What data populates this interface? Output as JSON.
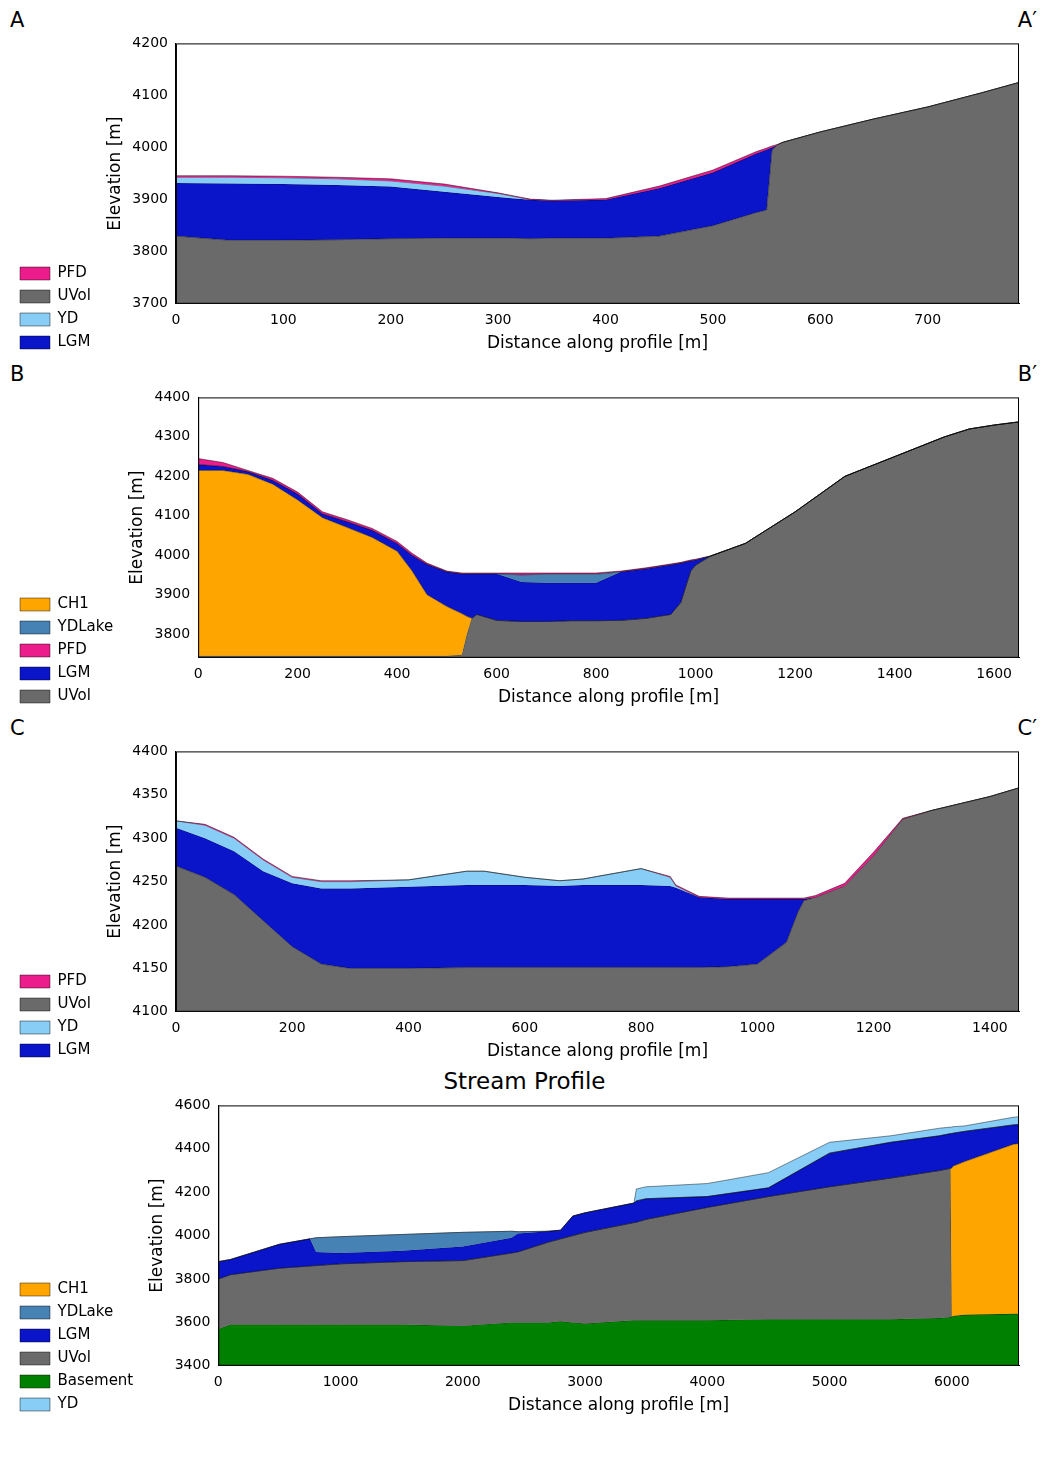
{
  "chart_data": [
    {
      "type": "area",
      "section_labels": [
        "A",
        "A′"
      ],
      "x_label": "Distance along profile [m]",
      "y_label": "Elevation [m]",
      "xlim": [
        0,
        785
      ],
      "xticks": [
        0,
        100,
        200,
        300,
        400,
        500,
        600,
        700
      ],
      "ylim": [
        3700,
        4200
      ],
      "yticks": [
        3700,
        3800,
        3900,
        4000,
        4100,
        4200
      ],
      "grid": false,
      "legend": "left",
      "x": [
        0,
        50,
        100,
        150,
        200,
        250,
        300,
        310,
        330,
        350,
        400,
        450,
        500,
        540,
        550,
        555,
        560,
        565,
        600,
        650,
        700,
        750,
        785
      ],
      "series": [
        {
          "name": "PFD",
          "color": "#ec1c8c",
          "values": [
            3946,
            3946,
            3945,
            3943,
            3940,
            3930,
            3913,
            3909,
            3901,
            3899,
            3902,
            3926,
            3957,
            3992,
            3999,
            4003,
            4006,
            4010,
            4030,
            4055,
            4078,
            4105,
            4125
          ]
        },
        {
          "name": "UVol",
          "color": "#6a6a6a",
          "values": [
            3830,
            3822,
            3822,
            3823,
            3825,
            3826,
            3826,
            3826,
            3825,
            3826,
            3826,
            3830,
            3850,
            3875,
            3880,
            3995,
            4005,
            4010,
            4030,
            4055,
            4078,
            4105,
            4125
          ]
        },
        {
          "name": "YD",
          "color": "#87cdf5",
          "values": [
            3943,
            3943,
            3942,
            3940,
            3936,
            3926,
            3912,
            3908,
            3900,
            3898,
            3900,
            3922,
            3952,
            3988,
            3996,
            4000,
            4005,
            4010,
            4030,
            4055,
            4078,
            4105,
            4125
          ]
        },
        {
          "name": "LGM",
          "color": "#0a14c8",
          "values": [
            3932,
            3931,
            3930,
            3928,
            3925,
            3915,
            3905,
            3903,
            3900,
            3898,
            3900,
            3922,
            3952,
            3988,
            3996,
            4000,
            4005,
            4010,
            4030,
            4055,
            4078,
            4105,
            4125
          ]
        }
      ]
    },
    {
      "type": "area",
      "section_labels": [
        "B",
        "B′"
      ],
      "x_label": "Distance along profile [m]",
      "y_label": "Elevation [m]",
      "xlim": [
        0,
        1650
      ],
      "xticks": [
        0,
        200,
        400,
        600,
        800,
        1000,
        1200,
        1400,
        1600
      ],
      "ylim": [
        3740,
        4400
      ],
      "yticks": [
        3800,
        3900,
        4000,
        4100,
        4200,
        4300,
        4400
      ],
      "grid": false,
      "legend": "left",
      "x": [
        0,
        50,
        100,
        150,
        200,
        250,
        300,
        350,
        400,
        430,
        460,
        500,
        530,
        540,
        550,
        560,
        600,
        650,
        700,
        750,
        800,
        850,
        900,
        950,
        970,
        990,
        1000,
        1030,
        1100,
        1200,
        1300,
        1400,
        1500,
        1550,
        1600,
        1650
      ],
      "series": [
        {
          "name": "CH1",
          "color": "#ffa500",
          "values": [
            4215,
            4215,
            4205,
            4180,
            4140,
            4095,
            4070,
            4045,
            4010,
            3960,
            3900,
            3870,
            3852,
            3845,
            3840,
            3850,
            3835,
            3832,
            3832,
            3834,
            3834,
            3835,
            3840,
            3850,
            3880,
            3960,
            3975,
            3998,
            4030,
            4110,
            4200,
            4250,
            4300,
            4320,
            4330,
            4338
          ]
        },
        {
          "name": "YDLake",
          "color": "#4682b4",
          "values": [
            4230,
            4225,
            4212,
            4190,
            4155,
            4105,
            4085,
            4063,
            4030,
            4000,
            3977,
            3958,
            3953,
            3953,
            3953,
            3953,
            3953,
            3950,
            3952,
            3952,
            3952,
            3958,
            3966,
            3976,
            3980,
            3986,
            3988,
            3998,
            4030,
            4110,
            4200,
            4250,
            4300,
            4320,
            4330,
            4338
          ]
        },
        {
          "name": "PFD",
          "color": "#ec1c8c",
          "values": [
            4245,
            4235,
            4215,
            4195,
            4160,
            4110,
            4090,
            4068,
            4035,
            4005,
            3980,
            3960,
            3955,
            3955,
            3955,
            3955,
            3955,
            3955,
            3955,
            3955,
            3955,
            3960,
            3968,
            3978,
            3982,
            3988,
            3990,
            3998,
            4030,
            4110,
            4200,
            4250,
            4300,
            4320,
            4330,
            4338
          ]
        },
        {
          "name": "LGM",
          "color": "#0a14c8",
          "values": [
            4230,
            4225,
            4212,
            4190,
            4155,
            4105,
            4085,
            4063,
            4030,
            4000,
            3977,
            3958,
            3953,
            3953,
            3953,
            3953,
            3953,
            3932,
            3930,
            3930,
            3930,
            3958,
            3966,
            3976,
            3980,
            3986,
            3988,
            3998,
            4030,
            4110,
            4200,
            4250,
            4300,
            4320,
            4330,
            4338
          ]
        },
        {
          "name": "UVol",
          "color": "#6a6a6a",
          "values": [
            3745,
            3745,
            3745,
            3745,
            3745,
            3745,
            3745,
            3745,
            3745,
            3745,
            3745,
            3745,
            3748,
            3800,
            3840,
            3850,
            3835,
            3832,
            3832,
            3834,
            3834,
            3835,
            3840,
            3850,
            3880,
            3960,
            3975,
            3998,
            4030,
            4110,
            4200,
            4250,
            4300,
            4320,
            4330,
            4338
          ]
        }
      ]
    },
    {
      "type": "area",
      "section_labels": [
        "C",
        "C′"
      ],
      "x_label": "Distance along profile [m]",
      "y_label": "Elevation [m]",
      "xlim": [
        0,
        1450
      ],
      "xticks": [
        0,
        200,
        400,
        600,
        800,
        1000,
        1200,
        1400
      ],
      "ylim": [
        4100,
        4400
      ],
      "yticks": [
        4100,
        4150,
        4200,
        4250,
        4300,
        4350,
        4400
      ],
      "grid": false,
      "legend": "left",
      "x": [
        0,
        50,
        100,
        150,
        200,
        250,
        300,
        400,
        500,
        530,
        600,
        660,
        700,
        800,
        850,
        860,
        900,
        950,
        1000,
        1050,
        1070,
        1080,
        1100,
        1150,
        1200,
        1250,
        1300,
        1350,
        1400,
        1450
      ],
      "series": [
        {
          "name": "PFD",
          "color": "#ec1c8c",
          "values": [
            4320,
            4316,
            4301,
            4276,
            4256,
            4251,
            4251,
            4252,
            4262,
            4262,
            4255,
            4251,
            4253,
            4265,
            4256,
            4246,
            4233,
            4231,
            4231,
            4231,
            4231,
            4231,
            4234,
            4248,
            4284,
            4323,
            4332,
            4340,
            4348,
            4358
          ]
        },
        {
          "name": "UVol",
          "color": "#6a6a6a",
          "values": [
            4268,
            4255,
            4235,
            4205,
            4175,
            4155,
            4150,
            4150,
            4151,
            4151,
            4151,
            4151,
            4151,
            4151,
            4151,
            4151,
            4151,
            4152,
            4155,
            4180,
            4215,
            4228,
            4232,
            4245,
            4280,
            4322,
            4332,
            4340,
            4348,
            4358
          ]
        },
        {
          "name": "YD",
          "color": "#87cdf5",
          "values": [
            4320,
            4315,
            4300,
            4275,
            4255,
            4250,
            4250,
            4252,
            4262,
            4262,
            4255,
            4251,
            4253,
            4265,
            4255,
            4245,
            4232,
            4230,
            4230,
            4230,
            4230,
            4230,
            4232,
            4245,
            4280,
            4322,
            4332,
            4340,
            4348,
            4358
          ]
        },
        {
          "name": "LGM",
          "color": "#0a14c8",
          "values": [
            4312,
            4300,
            4285,
            4262,
            4248,
            4242,
            4242,
            4244,
            4246,
            4246,
            4246,
            4245,
            4246,
            4246,
            4245,
            4243,
            4232,
            4230,
            4230,
            4230,
            4230,
            4230,
            4232,
            4245,
            4280,
            4322,
            4332,
            4340,
            4348,
            4358
          ]
        }
      ]
    },
    {
      "type": "area",
      "title": "Stream Profile",
      "x_label": "Distance along profile [m]",
      "y_label": "Elevation [m]",
      "xlim": [
        0,
        6550
      ],
      "xticks": [
        0,
        1000,
        2000,
        3000,
        4000,
        5000,
        6000
      ],
      "ylim": [
        3400,
        4600
      ],
      "yticks": [
        3400,
        3600,
        3800,
        4000,
        4200,
        4400,
        4600
      ],
      "grid": false,
      "legend": "left",
      "x": [
        0,
        100,
        500,
        750,
        800,
        1000,
        1500,
        2000,
        2400,
        2450,
        2700,
        2800,
        2900,
        3000,
        3400,
        3420,
        3500,
        4000,
        4500,
        5000,
        5500,
        5900,
        5990,
        6000,
        6010,
        6100,
        6500,
        6550
      ],
      "series": [
        {
          "name": "CH1",
          "color": "#ffa500",
          "values": [
            3800,
            3820,
            3850,
            3860,
            3862,
            3870,
            3880,
            3885,
            3920,
            3925,
            3970,
            3985,
            4000,
            4015,
            4060,
            4062,
            4075,
            4130,
            4180,
            4225,
            4265,
            4300,
            4310,
            4310,
            4320,
            4340,
            4420,
            4425
          ]
        },
        {
          "name": "YDLake",
          "color": "#4682b4",
          "values": [
            3880,
            3890,
            3960,
            3985,
            3990,
            3995,
            4005,
            4015,
            4020,
            4018,
            4020,
            4025,
            4090,
            4105,
            4150,
            4160,
            4170,
            4180,
            4220,
            4380,
            4430,
            4460,
            4470,
            4470,
            4472,
            4480,
            4510,
            4512
          ]
        },
        {
          "name": "LGM",
          "color": "#0a14c8",
          "values": [
            3880,
            3890,
            3960,
            3985,
            3925,
            3920,
            3930,
            3950,
            3990,
            4010,
            4020,
            4025,
            4090,
            4105,
            4150,
            4160,
            4170,
            4180,
            4220,
            4380,
            4430,
            4460,
            4470,
            4470,
            4472,
            4480,
            4510,
            4512
          ]
        },
        {
          "name": "UVol",
          "color": "#6a6a6a",
          "values": [
            3800,
            3820,
            3850,
            3860,
            3862,
            3870,
            3880,
            3885,
            3920,
            3925,
            3970,
            3985,
            4000,
            4015,
            4060,
            4062,
            4075,
            4130,
            4180,
            4225,
            4265,
            4300,
            4310,
            3625,
            3630,
            3635,
            3640,
            3640
          ]
        },
        {
          "name": "Basement",
          "color": "#008000",
          "values": [
            3570,
            3590,
            3590,
            3590,
            3590,
            3590,
            3590,
            3585,
            3600,
            3600,
            3600,
            3605,
            3600,
            3595,
            3610,
            3610,
            3610,
            3610,
            3615,
            3615,
            3615,
            3620,
            3625,
            3625,
            3630,
            3635,
            3640,
            3640
          ]
        },
        {
          "name": "YD",
          "color": "#87cdf5",
          "values": [
            3880,
            3890,
            3960,
            3985,
            3990,
            3995,
            4005,
            4015,
            4020,
            4018,
            4020,
            4025,
            4090,
            4105,
            4150,
            4215,
            4225,
            4240,
            4290,
            4430,
            4460,
            4495,
            4500,
            4500,
            4502,
            4505,
            4545,
            4548
          ]
        }
      ]
    }
  ]
}
